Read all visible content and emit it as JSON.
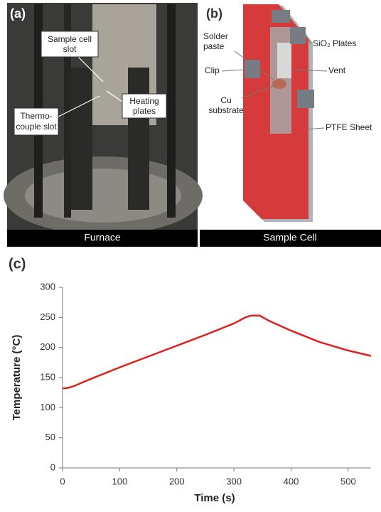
{
  "panel_a": {
    "label": "(a)",
    "caption": "Furnace",
    "annotations": [
      [
        "Sample cell",
        "slot"
      ],
      [
        "Heating",
        "plates"
      ],
      [
        "Thermo-",
        "couple slot"
      ]
    ]
  },
  "panel_b": {
    "label": "(b)",
    "caption": "Sample Cell",
    "annotations": [
      [
        "Solder",
        "paste"
      ],
      [
        "Clip"
      ],
      [
        "Cu",
        "substrate"
      ],
      [
        "SiO₂ Plates"
      ],
      [
        "Vent"
      ],
      [
        "PTFE Sheet"
      ]
    ]
  },
  "chart_data": {
    "type": "line",
    "label": "(c)",
    "xlabel": "Time (s)",
    "ylabel": "Temperature (°C)",
    "x": [
      0,
      10,
      20,
      50,
      100,
      150,
      200,
      250,
      300,
      320,
      330,
      345,
      360,
      400,
      450,
      500,
      540
    ],
    "series": [
      {
        "color": "#e0201c",
        "values": [
          132,
          133,
          136,
          148,
          167,
          185,
          203,
          221,
          240,
          250,
          253,
          253,
          245,
          228,
          209,
          195,
          186
        ]
      }
    ],
    "xlim": [
      0,
      540
    ],
    "ylim": [
      0,
      300
    ],
    "xticks": [
      0,
      100,
      200,
      300,
      400,
      500
    ],
    "yticks": [
      0,
      50,
      100,
      150,
      200,
      250,
      300
    ]
  }
}
